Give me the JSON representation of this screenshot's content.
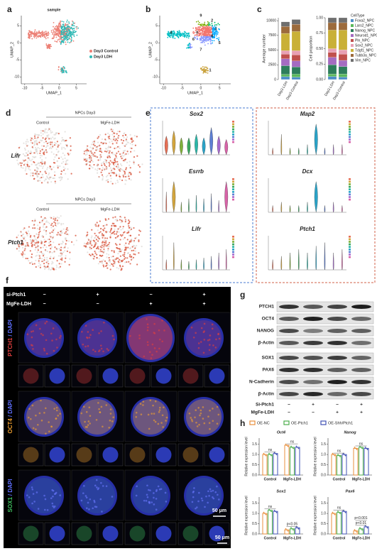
{
  "panel_a": {
    "letter": "a",
    "title": "sample",
    "x_label": "UMAP_1",
    "y_label": "UMAP_2",
    "xlim": [
      -11,
      8
    ],
    "ylim": [
      -12,
      8
    ],
    "xticks": [
      -10,
      -5,
      0,
      5
    ],
    "yticks": [
      -10,
      -5,
      0,
      5
    ],
    "legend": [
      {
        "name": "Day3 Control",
        "color": "#ec7f74"
      },
      {
        "name": "Day3 LDH",
        "color": "#2fb9b5"
      }
    ]
  },
  "panel_b": {
    "letter": "b",
    "x_label": "UMAP_1",
    "y_label": "UMAP_2",
    "xlim": [
      -11,
      8
    ],
    "ylim": [
      -12,
      8
    ],
    "xticks": [
      -10,
      -5,
      0,
      5
    ],
    "yticks": [
      -10,
      -5,
      0,
      5
    ],
    "clusters": [
      "0",
      "1",
      "2",
      "3",
      "4",
      "5",
      "6",
      "7",
      "8",
      "9"
    ]
  },
  "panel_c": {
    "letter": "c",
    "categories": [
      "Day3 LDH",
      "Day3 Control"
    ],
    "legend_title": "CellType",
    "count_chart": {
      "y_label": "Average number",
      "ylim": [
        0,
        10500
      ],
      "yticks": [
        0,
        2500,
        5000,
        7500,
        10000
      ]
    },
    "proportion_chart": {
      "y_label": "Cell proportion",
      "ylim": [
        0,
        1
      ],
      "yticks": [
        {
          "value": 0,
          "label": "0.00"
        },
        0.25,
        {
          "value": 0.5,
          "label": "0.50"
        },
        0.75,
        {
          "value": 1,
          "label": "1.00"
        }
      ]
    },
    "series": [
      {
        "name": "Foxa2_NPC",
        "color": "#4e8fc7",
        "counts": [
          490,
          408
        ],
        "proportions": [
          0.05,
          0.04
        ]
      },
      {
        "name": "Lars2_NPC",
        "color": "#5cb85c",
        "counts": [
          392,
          510
        ],
        "proportions": [
          0.04,
          0.05
        ]
      },
      {
        "name": "Nanog_NPC",
        "color": "#2e7d5b",
        "counts": [
          1470,
          1224
        ],
        "proportions": [
          0.15,
          0.12
        ]
      },
      {
        "name": "Neurod1_NPC",
        "color": "#a56cc1",
        "counts": [
          1176,
          1020
        ],
        "proportions": [
          0.12,
          0.1
        ]
      },
      {
        "name": "Pln_NPC",
        "color": "#c0504d",
        "counts": [
          784,
          1020
        ],
        "proportions": [
          0.08,
          0.1
        ]
      },
      {
        "name": "Sox2_NPC",
        "color": "#e8a0b4",
        "counts": [
          588,
          714
        ],
        "proportions": [
          0.06,
          0.07
        ]
      },
      {
        "name": "Tdgf1_NPC",
        "color": "#c9b037",
        "counts": [
          2940,
          3264
        ],
        "proportions": [
          0.3,
          0.32
        ]
      },
      {
        "name": "Tubb3a_NPC",
        "color": "#9c6b3c",
        "counts": [
          1176,
          1224
        ],
        "proportions": [
          0.12,
          0.12
        ]
      },
      {
        "name": "Vim_NPC",
        "color": "#6f6f6f",
        "counts": [
          784,
          816
        ],
        "proportions": [
          0.08,
          0.08
        ]
      }
    ]
  },
  "panel_d": {
    "letter": "d",
    "groups": [
      {
        "title": "NPCs Day3",
        "conditions": [
          "Control",
          "MgFe-LDH"
        ],
        "gene": "Lifr"
      },
      {
        "title": "NPCs Day3",
        "conditions": [
          "Control",
          "MgFe-LDH"
        ],
        "gene": "Ptch1"
      }
    ]
  },
  "panel_e": {
    "letter": "e",
    "columns": [
      [
        "Sox2",
        "Esrrb",
        "Lifr"
      ],
      [
        "Map2",
        "Dcx",
        "Ptch1"
      ]
    ]
  },
  "panel_f": {
    "letter": "f",
    "rows": [
      {
        "label": "si-Ptch1",
        "signs": [
          "−",
          "+",
          "−",
          "+"
        ]
      },
      {
        "label": "MgFe-LDH",
        "signs": [
          "−",
          "−",
          "+",
          "+"
        ]
      }
    ],
    "stains": [
      {
        "marker": "PTCH1",
        "counterstain": "/ DAPI"
      },
      {
        "marker": "OCT4",
        "counterstain": "/ DAPI"
      },
      {
        "marker": "SOX1",
        "counterstain": "/ DAPI"
      }
    ],
    "scale_bars": [
      "50 μm",
      "50 μm"
    ]
  },
  "panel_g": {
    "letter": "g",
    "proteins": [
      "PTCH1",
      "OCT4",
      "NANOG",
      "β-Actin",
      "SOX1",
      "PAX6",
      "N-Cadherin",
      "β-Actin"
    ],
    "rows": [
      {
        "label": "Si-Ptch1",
        "signs": [
          "−",
          "+",
          "−",
          "+"
        ]
      },
      {
        "label": "MgFe-LDH",
        "signs": [
          "−",
          "−",
          "+",
          "+"
        ]
      }
    ]
  },
  "panel_h": {
    "letter": "h",
    "legend": [
      {
        "name": "OE-NC",
        "color": "#e98f3c"
      },
      {
        "name": "OE-Ptch1",
        "color": "#4cae4c"
      },
      {
        "name": "OE-Shh/Ptch1",
        "color": "#3f51b5"
      }
    ],
    "charts": [
      {
        "title": "Oct4",
        "y_label": "Relative expression level",
        "categories": [
          "Control",
          "MgFe-LDH"
        ],
        "ylim": [
          0,
          1.8
        ],
        "yticks": [
          {
            "value": 0,
            "label": "0.0"
          },
          0.5,
          {
            "value": 1,
            "label": "1.0"
          },
          1.5
        ],
        "values": [
          [
            1.0,
            1.0,
            1.05
          ],
          [
            1.45,
            1.35,
            1.35
          ]
        ],
        "annotations": [
          [
            "ns"
          ],
          [
            "ns"
          ]
        ]
      },
      {
        "title": "Nanog",
        "y_label": "Relative expression level",
        "categories": [
          "Control",
          "MgFe-LDH"
        ],
        "ylim": [
          0,
          1.8
        ],
        "yticks": [
          {
            "value": 0,
            "label": "0.0"
          },
          0.5,
          {
            "value": 1,
            "label": "1.0"
          },
          1.5
        ],
        "values": [
          [
            1.0,
            0.95,
            1.0
          ],
          [
            1.3,
            1.35,
            1.3
          ]
        ],
        "annotations": [
          [
            "ns"
          ],
          [
            "ns"
          ]
        ]
      },
      {
        "title": "Sox1",
        "y_label": "Relative expression level",
        "categories": [
          "Control",
          "MgFe-LDH"
        ],
        "ylim": [
          0,
          1.8
        ],
        "yticks": [
          {
            "value": 0,
            "label": "0.0"
          },
          0.5,
          {
            "value": 1,
            "label": "1.0"
          },
          1.5
        ],
        "values": [
          [
            1.0,
            1.15,
            1.1
          ],
          [
            0.2,
            0.25,
            0.3
          ]
        ],
        "annotations": [
          [
            "ns"
          ],
          [
            "p<0.05"
          ]
        ]
      },
      {
        "title": "Pax6",
        "y_label": "Relative expression level",
        "categories": [
          "Control",
          "MgFe-LDH"
        ],
        "ylim": [
          0,
          1.8
        ],
        "yticks": [
          {
            "value": 0,
            "label": "0.0"
          },
          0.5,
          {
            "value": 1,
            "label": "1.0"
          },
          1.5
        ],
        "values": [
          [
            1.0,
            1.05,
            1.1
          ],
          [
            0.15,
            0.25,
            0.35
          ]
        ],
        "annotations": [
          [
            "ns"
          ],
          [
            "p<0.01",
            "p<0.001"
          ]
        ]
      }
    ]
  }
}
